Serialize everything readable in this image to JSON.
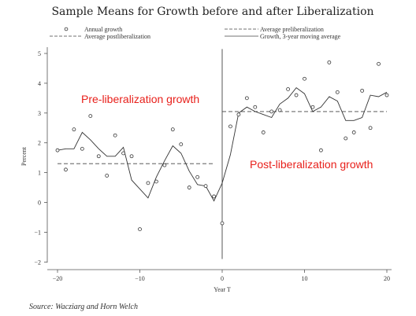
{
  "chart_data": {
    "type": "line",
    "title": "Sample Means for Growth before and after Liberalization",
    "xlabel": "Year T",
    "ylabel": "Percent",
    "xlim": [
      -21,
      21
    ],
    "ylim": [
      -2,
      5.3
    ],
    "xticks": [
      -20,
      -10,
      0,
      10,
      20
    ],
    "yticks": [
      -2,
      -1,
      0,
      1,
      2,
      3,
      4,
      5
    ],
    "legend": {
      "annual": "Annual growth",
      "avg_post": "Average postliberalization",
      "avg_pre": "Average preliberalization",
      "moving": "Growth, 3-year moving average"
    },
    "pre_average": 1.3,
    "post_average": 3.05,
    "breakpoint_x": 0,
    "annual_growth": [
      {
        "x": -20,
        "y": 1.75
      },
      {
        "x": -19,
        "y": 1.1
      },
      {
        "x": -18,
        "y": 2.45
      },
      {
        "x": -17,
        "y": 1.8
      },
      {
        "x": -16,
        "y": 2.9
      },
      {
        "x": -15,
        "y": 1.55
      },
      {
        "x": -14,
        "y": 0.9
      },
      {
        "x": -13,
        "y": 2.25
      },
      {
        "x": -12,
        "y": 1.65
      },
      {
        "x": -11,
        "y": 1.55
      },
      {
        "x": -10,
        "y": -0.9
      },
      {
        "x": -9,
        "y": 0.65
      },
      {
        "x": -8,
        "y": 0.7
      },
      {
        "x": -7,
        "y": 1.25
      },
      {
        "x": -6,
        "y": 2.45
      },
      {
        "x": -5,
        "y": 1.95
      },
      {
        "x": -4,
        "y": 0.5
      },
      {
        "x": -3,
        "y": 0.85
      },
      {
        "x": -2,
        "y": 0.55
      },
      {
        "x": -1,
        "y": 0.2
      },
      {
        "x": 0,
        "y": -0.7
      },
      {
        "x": 1,
        "y": 2.55
      },
      {
        "x": 2,
        "y": 2.95
      },
      {
        "x": 3,
        "y": 3.5
      },
      {
        "x": 4,
        "y": 3.2
      },
      {
        "x": 5,
        "y": 2.35
      },
      {
        "x": 6,
        "y": 3.05
      },
      {
        "x": 7,
        "y": 3.1
      },
      {
        "x": 8,
        "y": 3.8
      },
      {
        "x": 9,
        "y": 3.6
      },
      {
        "x": 10,
        "y": 4.15
      },
      {
        "x": 11,
        "y": 3.2
      },
      {
        "x": 12,
        "y": 1.75
      },
      {
        "x": 13,
        "y": 4.7
      },
      {
        "x": 14,
        "y": 3.7
      },
      {
        "x": 15,
        "y": 2.15
      },
      {
        "x": 16,
        "y": 2.35
      },
      {
        "x": 17,
        "y": 3.75
      },
      {
        "x": 18,
        "y": 2.5
      },
      {
        "x": 19,
        "y": 4.65
      },
      {
        "x": 20,
        "y": 3.6
      }
    ],
    "moving_average": [
      {
        "x": -20,
        "y": 1.75
      },
      {
        "x": -19,
        "y": 1.8
      },
      {
        "x": -18,
        "y": 1.8
      },
      {
        "x": -17,
        "y": 2.35
      },
      {
        "x": -16,
        "y": 2.1
      },
      {
        "x": -15,
        "y": 1.8
      },
      {
        "x": -14,
        "y": 1.55
      },
      {
        "x": -13,
        "y": 1.55
      },
      {
        "x": -12,
        "y": 1.85
      },
      {
        "x": -11,
        "y": 0.75
      },
      {
        "x": -10,
        "y": 0.45
      },
      {
        "x": -9,
        "y": 0.15
      },
      {
        "x": -8,
        "y": 0.85
      },
      {
        "x": -7,
        "y": 1.4
      },
      {
        "x": -6,
        "y": 1.9
      },
      {
        "x": -5,
        "y": 1.65
      },
      {
        "x": -4,
        "y": 1.05
      },
      {
        "x": -3,
        "y": 0.6
      },
      {
        "x": -2,
        "y": 0.55
      },
      {
        "x": -1,
        "y": 0.05
      },
      {
        "x": 0,
        "y": 0.65
      },
      {
        "x": 1,
        "y": 1.6
      },
      {
        "x": 2,
        "y": 3.0
      },
      {
        "x": 3,
        "y": 3.2
      },
      {
        "x": 4,
        "y": 3.05
      },
      {
        "x": 5,
        "y": 2.95
      },
      {
        "x": 6,
        "y": 2.85
      },
      {
        "x": 7,
        "y": 3.3
      },
      {
        "x": 8,
        "y": 3.5
      },
      {
        "x": 9,
        "y": 3.85
      },
      {
        "x": 10,
        "y": 3.65
      },
      {
        "x": 11,
        "y": 3.05
      },
      {
        "x": 12,
        "y": 3.2
      },
      {
        "x": 13,
        "y": 3.55
      },
      {
        "x": 14,
        "y": 3.4
      },
      {
        "x": 15,
        "y": 2.75
      },
      {
        "x": 16,
        "y": 2.75
      },
      {
        "x": 17,
        "y": 2.85
      },
      {
        "x": 18,
        "y": 3.6
      },
      {
        "x": 19,
        "y": 3.55
      },
      {
        "x": 20,
        "y": 3.7
      }
    ],
    "annotations": [
      {
        "text": "Pre-liberalization growth",
        "color": "#e8201b"
      },
      {
        "text": "Post-liberalization growth",
        "color": "#e8201b"
      }
    ],
    "source": "Source:  Wacziarg and Horn Welch"
  }
}
